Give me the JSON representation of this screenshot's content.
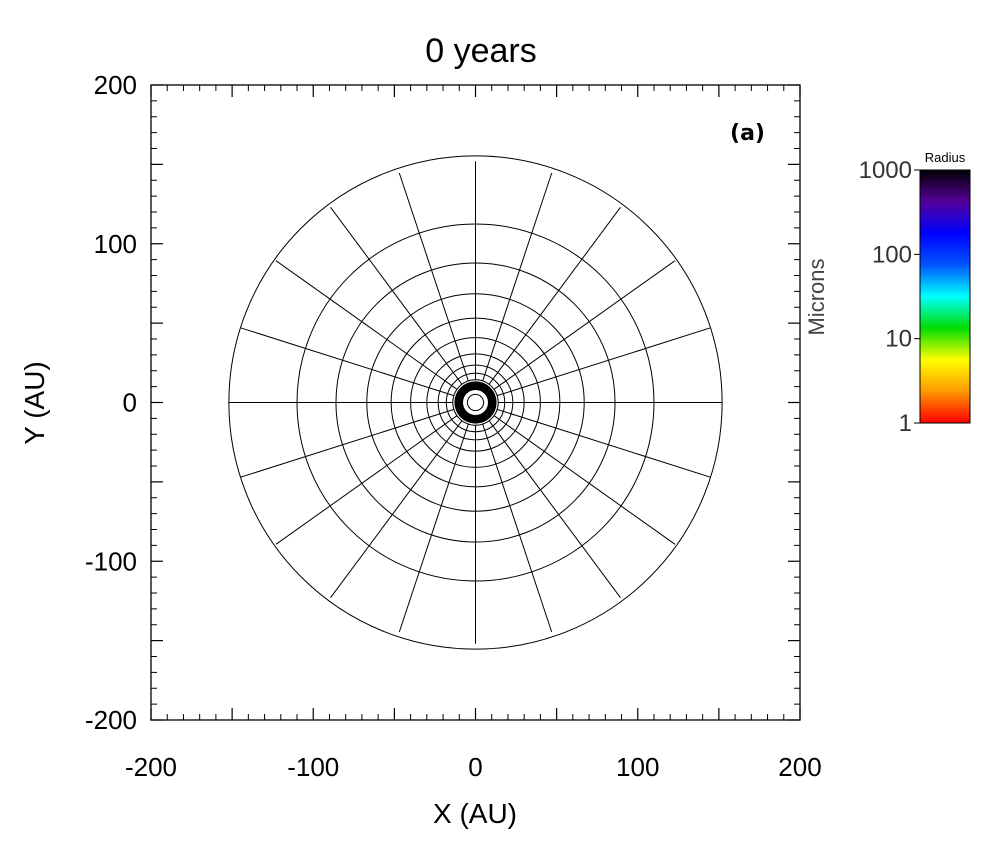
{
  "chart_data": {
    "type": "scatter",
    "title": "0 years",
    "xlabel": "X (AU)",
    "ylabel": "Y (AU)",
    "xlim": [
      -200,
      200
    ],
    "ylim": [
      -200,
      200
    ],
    "xticks": [
      -200,
      -100,
      0,
      100,
      200
    ],
    "yticks": [
      -200,
      -100,
      0,
      100,
      200
    ],
    "panel_label": "(a)",
    "grid": {
      "rings_au": [
        5,
        8,
        11,
        14,
        18,
        23,
        30,
        40,
        52,
        67,
        86,
        110,
        152
      ],
      "spoke_angles_deg": [
        0,
        18,
        36,
        54,
        72,
        90,
        108,
        126,
        144,
        162,
        180,
        198,
        216,
        234,
        252,
        270,
        288,
        306,
        324,
        342
      ],
      "inner_spoke_radius_au": 14,
      "line_color": "#000000"
    },
    "central_ring": {
      "inner_au": 8,
      "outer_au": 13,
      "color": "#000000"
    },
    "colorbar": {
      "label": "Radius",
      "unit": "Microns",
      "scale": "log",
      "range": [
        1,
        1000
      ],
      "ticks": [
        "1",
        "10",
        "100",
        "1000"
      ],
      "colormap": [
        "#ff0000",
        "#ff9900",
        "#ffff00",
        "#00dd00",
        "#00ffff",
        "#0055ff",
        "#0000ff",
        "#550099",
        "#000000"
      ]
    }
  }
}
